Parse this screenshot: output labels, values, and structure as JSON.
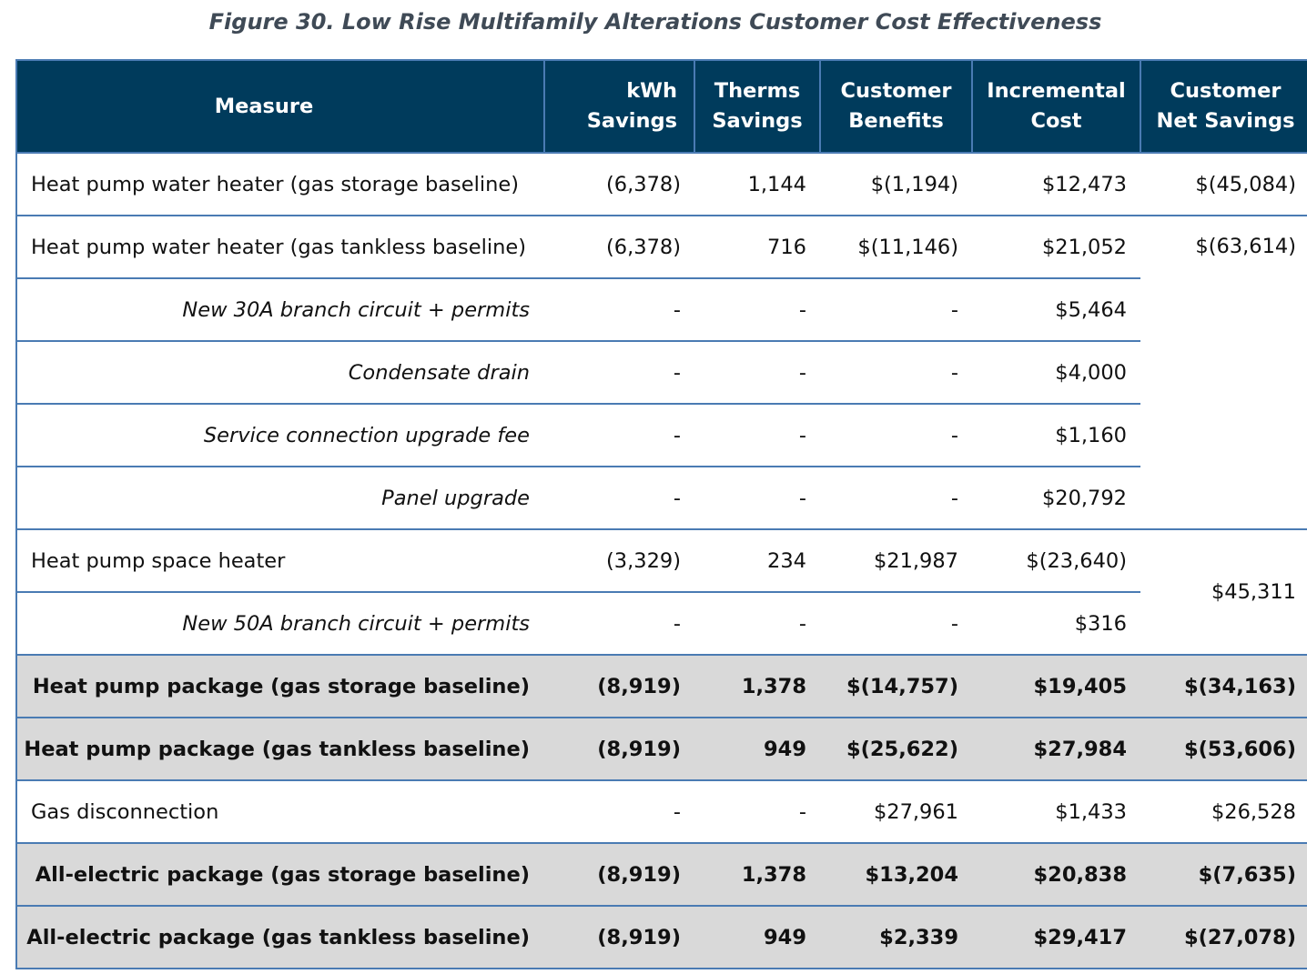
{
  "caption": "Figure 30. Low Rise Multifamily Alterations Customer Cost Effectiveness",
  "headers": {
    "measure": "Measure",
    "kwh_1": "kWh",
    "kwh_2": "Savings",
    "therms_1": "Therms",
    "therms_2": "Savings",
    "benefits_1": "Customer",
    "benefits_2": "Benefits",
    "cost_1": "Incremental",
    "cost_2": "Cost",
    "net_1": "Customer",
    "net_2": "Net Savings"
  },
  "rows": [
    {
      "measure": "Heat pump water heater (gas storage baseline)",
      "kwh": "(6,378)",
      "therms": "1,144",
      "benefits": "$(1,194)",
      "cost": "$12,473",
      "net": "$(45,084)"
    },
    {
      "measure": "Heat pump water heater (gas tankless baseline)",
      "kwh": "(6,378)",
      "therms": "716",
      "benefits": "$(11,146)",
      "cost": "$21,052",
      "net": "$(63,614)"
    },
    {
      "measure": "New 30A branch circuit + permits",
      "kwh": "-",
      "therms": "-",
      "benefits": "-",
      "cost": "$5,464"
    },
    {
      "measure": "Condensate drain",
      "kwh": "-",
      "therms": "-",
      "benefits": "-",
      "cost": "$4,000"
    },
    {
      "measure": "Service connection upgrade fee",
      "kwh": "-",
      "therms": "-",
      "benefits": "-",
      "cost": "$1,160"
    },
    {
      "measure": "Panel upgrade",
      "kwh": "-",
      "therms": "-",
      "benefits": "-",
      "cost": "$20,792"
    },
    {
      "measure": "Heat pump space heater",
      "kwh": "(3,329)",
      "therms": "234",
      "benefits": "$21,987",
      "cost": "$(23,640)",
      "net": "$45,311"
    },
    {
      "measure": "New 50A branch circuit + permits",
      "kwh": "-",
      "therms": "-",
      "benefits": "-",
      "cost": "$316"
    },
    {
      "measure": "Heat pump package (gas storage baseline)",
      "kwh": "(8,919)",
      "therms": "1,378",
      "benefits": "$(14,757)",
      "cost": "$19,405",
      "net": "$(34,163)"
    },
    {
      "measure": "Heat pump package (gas tankless baseline)",
      "kwh": "(8,919)",
      "therms": "949",
      "benefits": "$(25,622)",
      "cost": "$27,984",
      "net": "$(53,606)"
    },
    {
      "measure": "Gas disconnection",
      "kwh": "-",
      "therms": "-",
      "benefits": "$27,961",
      "cost": "$1,433",
      "net": "$26,528"
    },
    {
      "measure": "All-electric package (gas storage baseline)",
      "kwh": "(8,919)",
      "therms": "1,378",
      "benefits": "$13,204",
      "cost": "$20,838",
      "net": "$(7,635)"
    },
    {
      "measure": "All-electric package (gas tankless baseline)",
      "kwh": "(8,919)",
      "therms": "949",
      "benefits": "$2,339",
      "cost": "$29,417",
      "net": "$(27,078)"
    }
  ]
}
